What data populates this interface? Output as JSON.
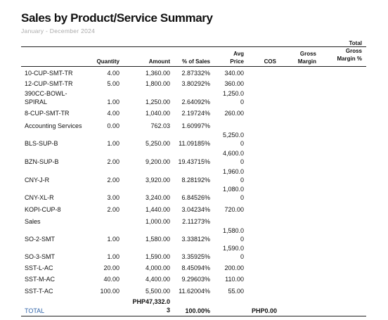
{
  "report": {
    "title": "Sales by Product/Service Summary",
    "period": "January - December 2024"
  },
  "columns": {
    "quantity": "Quantity",
    "amount": "Amount",
    "pct_sales": "% of Sales",
    "avg_price_1": "Avg",
    "avg_price_2": "Price",
    "cos": "COS",
    "gross_margin_1": "Gross",
    "gross_margin_2": "Margin",
    "total_gm_1": "Total",
    "total_gm_2": "Gross",
    "total_gm_3": "Margin %"
  },
  "rows": [
    {
      "name": [
        "10-CUP-SMT-TR"
      ],
      "qty": "4.00",
      "amount": "1,360.00",
      "pct": "2.87332%",
      "avg": [
        "340.00"
      ]
    },
    {
      "name": [
        "12-CUP-SMT-TR"
      ],
      "qty": "5.00",
      "amount": "1,800.00",
      "pct": "3.80292%",
      "avg": [
        "360.00"
      ]
    },
    {
      "name": [
        "390CC-BOWL-",
        "SPIRAL"
      ],
      "qty": "1.00",
      "amount": "1,250.00",
      "pct": "2.64092%",
      "avg": [
        "1,250.0",
        "0"
      ]
    },
    {
      "name": [
        "8-CUP-SMT-TR"
      ],
      "qty": "4.00",
      "amount": "1,040.00",
      "pct": "2.19724%",
      "avg": [
        "260.00"
      ]
    },
    {
      "name": [
        "Accounting Services"
      ],
      "qty": "0.00",
      "amount": "762.03",
      "pct": "1.60997%",
      "avg": []
    },
    {
      "name": [
        "BLS-SUP-B"
      ],
      "qty": "1.00",
      "amount": "5,250.00",
      "pct": "11.09185%",
      "avg": [
        "5,250.0",
        "0"
      ]
    },
    {
      "name": [
        "BZN-SUP-B"
      ],
      "qty": "2.00",
      "amount": "9,200.00",
      "pct": "19.43715%",
      "avg": [
        "4,600.0",
        "0"
      ]
    },
    {
      "name": [
        "CNY-J-R"
      ],
      "qty": "2.00",
      "amount": "3,920.00",
      "pct": "8.28192%",
      "avg": [
        "1,960.0",
        "0"
      ]
    },
    {
      "name": [
        "CNY-XL-R"
      ],
      "qty": "3.00",
      "amount": "3,240.00",
      "pct": "6.84526%",
      "avg": [
        "1,080.0",
        "0"
      ]
    },
    {
      "name": [
        "KOPI-CUP-8"
      ],
      "qty": "2.00",
      "amount": "1,440.00",
      "pct": "3.04234%",
      "avg": [
        "720.00"
      ]
    },
    {
      "name": [
        "Sales"
      ],
      "qty": "",
      "amount": "1,000.00",
      "pct": "2.11273%",
      "avg": []
    },
    {
      "name": [
        "SO-2-SMT"
      ],
      "qty": "1.00",
      "amount": "1,580.00",
      "pct": "3.33812%",
      "avg": [
        "1,580.0",
        "0"
      ]
    },
    {
      "name": [
        "SO-3-SMT"
      ],
      "qty": "1.00",
      "amount": "1,590.00",
      "pct": "3.35925%",
      "avg": [
        "1,590.0",
        "0"
      ]
    },
    {
      "name": [
        "SST-L-AC"
      ],
      "qty": "20.00",
      "amount": "4,000.00",
      "pct": "8.45094%",
      "avg": [
        "200.00"
      ]
    },
    {
      "name": [
        "SST-M-AC"
      ],
      "qty": "40.00",
      "amount": "4,400.00",
      "pct": "9.29603%",
      "avg": [
        "110.00"
      ]
    },
    {
      "name": [
        "SST-T-AC"
      ],
      "qty": "100.00",
      "amount": "5,500.00",
      "pct": "11.62004%",
      "avg": [
        "55.00"
      ]
    }
  ],
  "total": {
    "label": "TOTAL",
    "amount_1": "PHP47,332.0",
    "amount_2": "3",
    "pct": "100.00%",
    "cos": "PHP0.00"
  }
}
